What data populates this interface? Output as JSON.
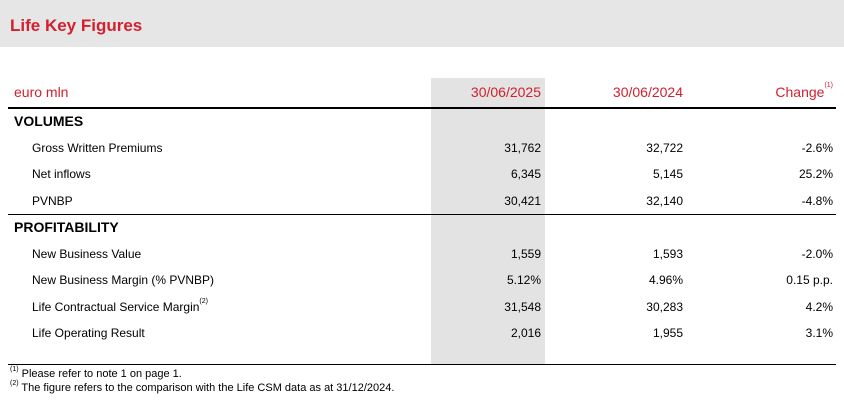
{
  "header": {
    "title": "Life Key Figures"
  },
  "table": {
    "columns": [
      {
        "label": "euro mln"
      },
      {
        "label": "30/06/2025"
      },
      {
        "label": "30/06/2024"
      },
      {
        "label": "Change",
        "note": "(1)"
      }
    ],
    "sections": [
      {
        "title": "VOLUMES",
        "rows": [
          {
            "label": "Gross Written Premiums",
            "values": [
              "31,762",
              "32,722",
              "-2.6%"
            ]
          },
          {
            "label": "Net inflows",
            "values": [
              "6,345",
              "5,145",
              "25.2%"
            ]
          },
          {
            "label": "PVNBP",
            "values": [
              "30,421",
              "32,140",
              "-4.8%"
            ]
          }
        ]
      },
      {
        "title": "PROFITABILITY",
        "rows": [
          {
            "label": "New Business Value",
            "values": [
              "1,559",
              "1,593",
              "-2.0%"
            ]
          },
          {
            "label": "New Business Margin (% PVNBP)",
            "values": [
              "5.12%",
              "4.96%",
              "0.15 p.p."
            ]
          },
          {
            "label": "Life Contractual Service Margin",
            "note": "(2)",
            "values": [
              "31,548",
              "30,283",
              "4.2%"
            ]
          },
          {
            "label": "Life Operating Result",
            "values": [
              "2,016",
              "1,955",
              "3.1%"
            ]
          }
        ]
      }
    ]
  },
  "footnotes": [
    {
      "mark": "(1)",
      "text": "Please refer to note 1 on page 1."
    },
    {
      "mark": "(2)",
      "text": "The figure refers to the comparison with the Life CSM data as at 31/12/2024."
    }
  ]
}
